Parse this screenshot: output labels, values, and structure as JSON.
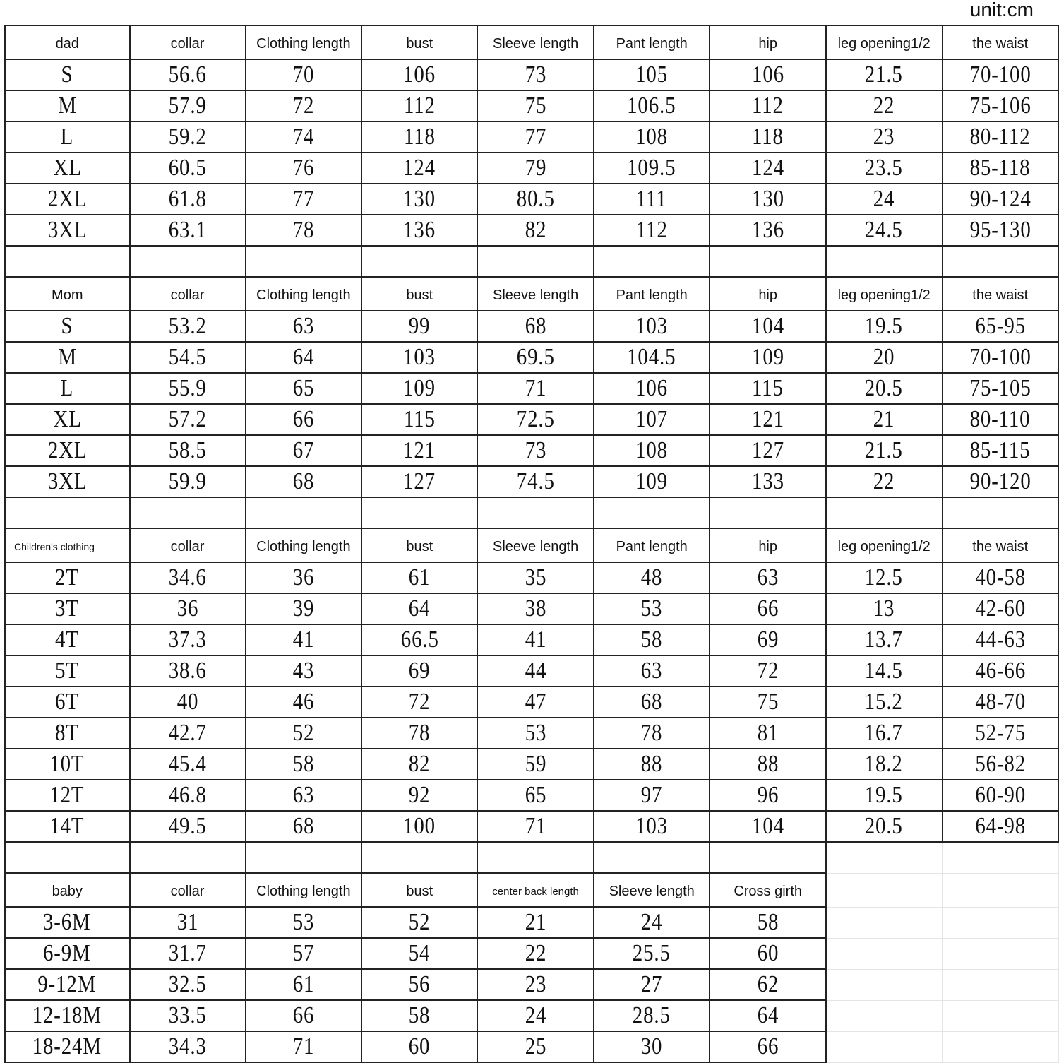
{
  "unit_label": "unit:cm",
  "sections": [
    {
      "headers": [
        "dad",
        "collar",
        "Clothing length",
        "bust",
        "Sleeve length",
        "Pant length",
        "hip",
        "leg opening1/2",
        "the waist"
      ],
      "rows": [
        [
          "S",
          "56.6",
          "70",
          "106",
          "73",
          "105",
          "106",
          "21.5",
          "70-100"
        ],
        [
          "M",
          "57.9",
          "72",
          "112",
          "75",
          "106.5",
          "112",
          "22",
          "75-106"
        ],
        [
          "L",
          "59.2",
          "74",
          "118",
          "77",
          "108",
          "118",
          "23",
          "80-112"
        ],
        [
          "XL",
          "60.5",
          "76",
          "124",
          "79",
          "109.5",
          "124",
          "23.5",
          "85-118"
        ],
        [
          "2XL",
          "61.8",
          "77",
          "130",
          "80.5",
          "111",
          "130",
          "24",
          "90-124"
        ],
        [
          "3XL",
          "63.1",
          "78",
          "136",
          "82",
          "112",
          "136",
          "24.5",
          "95-130"
        ]
      ]
    },
    {
      "headers": [
        "Mom",
        "collar",
        "Clothing length",
        "bust",
        "Sleeve length",
        "Pant length",
        "hip",
        "leg opening1/2",
        "the waist"
      ],
      "rows": [
        [
          "S",
          "53.2",
          "63",
          "99",
          "68",
          "103",
          "104",
          "19.5",
          "65-95"
        ],
        [
          "M",
          "54.5",
          "64",
          "103",
          "69.5",
          "104.5",
          "109",
          "20",
          "70-100"
        ],
        [
          "L",
          "55.9",
          "65",
          "109",
          "71",
          "106",
          "115",
          "20.5",
          "75-105"
        ],
        [
          "XL",
          "57.2",
          "66",
          "115",
          "72.5",
          "107",
          "121",
          "21",
          "80-110"
        ],
        [
          "2XL",
          "58.5",
          "67",
          "121",
          "73",
          "108",
          "127",
          "21.5",
          "85-115"
        ],
        [
          "3XL",
          "59.9",
          "68",
          "127",
          "74.5",
          "109",
          "133",
          "22",
          "90-120"
        ]
      ]
    },
    {
      "headers": [
        "Children's clothing",
        "collar",
        "Clothing length",
        "bust",
        "Sleeve length",
        "Pant length",
        "hip",
        "leg opening1/2",
        "the waist"
      ],
      "rows": [
        [
          "2T",
          "34.6",
          "36",
          "61",
          "35",
          "48",
          "63",
          "12.5",
          "40-58"
        ],
        [
          "3T",
          "36",
          "39",
          "64",
          "38",
          "53",
          "66",
          "13",
          "42-60"
        ],
        [
          "4T",
          "37.3",
          "41",
          "66.5",
          "41",
          "58",
          "69",
          "13.7",
          "44-63"
        ],
        [
          "5T",
          "38.6",
          "43",
          "69",
          "44",
          "63",
          "72",
          "14.5",
          "46-66"
        ],
        [
          "6T",
          "40",
          "46",
          "72",
          "47",
          "68",
          "75",
          "15.2",
          "48-70"
        ],
        [
          "8T",
          "42.7",
          "52",
          "78",
          "53",
          "78",
          "81",
          "16.7",
          "52-75"
        ],
        [
          "10T",
          "45.4",
          "58",
          "82",
          "59",
          "88",
          "88",
          "18.2",
          "56-82"
        ],
        [
          "12T",
          "46.8",
          "63",
          "92",
          "65",
          "97",
          "96",
          "19.5",
          "60-90"
        ],
        [
          "14T",
          "49.5",
          "68",
          "100",
          "71",
          "103",
          "104",
          "20.5",
          "64-98"
        ]
      ]
    },
    {
      "headers": [
        "baby",
        "collar",
        "Clothing length",
        "bust",
        "center back length",
        "Sleeve length",
        "Cross girth"
      ],
      "rows": [
        [
          "3-6M",
          "31",
          "53",
          "52",
          "21",
          "24",
          "58"
        ],
        [
          "6-9M",
          "31.7",
          "57",
          "54",
          "22",
          "25.5",
          "60"
        ],
        [
          "9-12M",
          "32.5",
          "61",
          "56",
          "23",
          "27",
          "62"
        ],
        [
          "12-18M",
          "33.5",
          "66",
          "58",
          "24",
          "28.5",
          "64"
        ],
        [
          "18-24M",
          "34.3",
          "71",
          "60",
          "25",
          "30",
          "66"
        ]
      ]
    }
  ]
}
